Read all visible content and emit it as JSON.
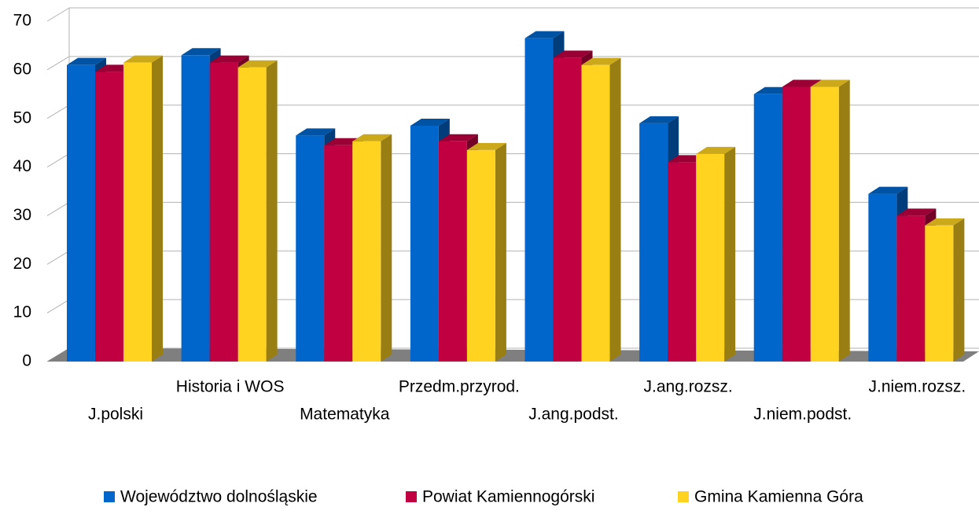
{
  "chart_data": {
    "type": "bar3d",
    "categories": [
      "J.polski",
      "Historia i WOS",
      "Matematyka",
      "Przedm.przyrod.",
      "J.ang.podst.",
      "J.ang.rozsz.",
      "J.niem.podst.",
      "J.niem.rozsz."
    ],
    "series": [
      {
        "name": "Województwo dolnośląskie",
        "color": "#0066cc",
        "values": [
          61,
          63,
          46.5,
          48.5,
          66.5,
          49,
          55,
          34.5
        ]
      },
      {
        "name": "Powiat Kamiennogórski",
        "color": "#c00040",
        "values": [
          59.6,
          61.5,
          44.5,
          45.3,
          62.5,
          41,
          56.5,
          30
        ]
      },
      {
        "name": "Gmina Kamienna Góra",
        "color": "#ffd320",
        "values": [
          61.5,
          60.5,
          45.3,
          43.5,
          61,
          42.7,
          56.5,
          28
        ]
      }
    ],
    "ylim": [
      0,
      70
    ],
    "yticks": [
      0,
      10,
      20,
      30,
      40,
      50,
      60,
      70
    ],
    "grid": true,
    "legend": "bottom"
  }
}
